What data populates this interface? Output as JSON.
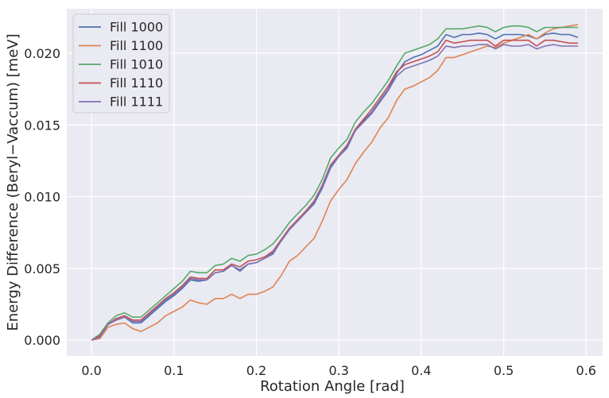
{
  "chart_data": {
    "type": "line",
    "xlabel": "Rotation Angle [rad]",
    "ylabel": "Energy Difference (Beryl−Vaccum) [meV]",
    "xlim": [
      -0.03,
      0.62
    ],
    "ylim": [
      -0.0011,
      0.0231
    ],
    "xticks": [
      0.0,
      0.1,
      0.2,
      0.3,
      0.4,
      0.5,
      0.6
    ],
    "xtick_labels": [
      "0.0",
      "0.1",
      "0.2",
      "0.3",
      "0.4",
      "0.5",
      "0.6"
    ],
    "yticks": [
      0.0,
      0.005,
      0.01,
      0.015,
      0.02
    ],
    "ytick_labels": [
      "0.000",
      "0.005",
      "0.010",
      "0.015",
      "0.020"
    ],
    "grid": true,
    "legend_position": "top-left",
    "x": [
      0.0,
      0.01,
      0.02,
      0.03,
      0.04,
      0.05,
      0.06,
      0.07,
      0.08,
      0.09,
      0.1,
      0.11,
      0.12,
      0.13,
      0.14,
      0.15,
      0.16,
      0.17,
      0.18,
      0.19,
      0.2,
      0.21,
      0.22,
      0.23,
      0.24,
      0.25,
      0.26,
      0.27,
      0.28,
      0.29,
      0.3,
      0.31,
      0.32,
      0.33,
      0.34,
      0.35,
      0.36,
      0.37,
      0.38,
      0.39,
      0.4,
      0.41,
      0.42,
      0.43,
      0.44,
      0.45,
      0.46,
      0.47,
      0.48,
      0.49,
      0.5,
      0.51,
      0.52,
      0.53,
      0.54,
      0.55,
      0.56,
      0.57,
      0.58,
      0.59
    ],
    "series": [
      {
        "name": "Fill 1000",
        "color": "#4c72b0",
        "values": [
          0.0,
          0.0003,
          0.0011,
          0.0014,
          0.0016,
          0.0012,
          0.0012,
          0.0017,
          0.0022,
          0.0027,
          0.0031,
          0.0036,
          0.0042,
          0.0041,
          0.0042,
          0.0047,
          0.0048,
          0.0052,
          0.0049,
          0.0053,
          0.0054,
          0.0057,
          0.006,
          0.0069,
          0.0077,
          0.0083,
          0.0089,
          0.0095,
          0.0106,
          0.012,
          0.0128,
          0.0134,
          0.0146,
          0.0153,
          0.0159,
          0.0167,
          0.0175,
          0.0186,
          0.0194,
          0.0197,
          0.0199,
          0.0202,
          0.0205,
          0.0213,
          0.0211,
          0.0213,
          0.0213,
          0.0214,
          0.0213,
          0.021,
          0.0213,
          0.0213,
          0.0213,
          0.0212,
          0.021,
          0.0213,
          0.0214,
          0.0213,
          0.0213,
          0.0211
        ]
      },
      {
        "name": "Fill 1100",
        "color": "#dd8452",
        "values": [
          0.0,
          0.0001,
          0.0009,
          0.0011,
          0.0012,
          0.0008,
          0.0006,
          0.0009,
          0.0012,
          0.0017,
          0.002,
          0.0023,
          0.0028,
          0.0026,
          0.0025,
          0.0029,
          0.0029,
          0.0032,
          0.0029,
          0.0032,
          0.0032,
          0.0034,
          0.0037,
          0.0045,
          0.0055,
          0.0059,
          0.0065,
          0.0071,
          0.0083,
          0.0097,
          0.0105,
          0.0112,
          0.0123,
          0.0131,
          0.0138,
          0.0148,
          0.0155,
          0.0167,
          0.0175,
          0.0177,
          0.018,
          0.0183,
          0.0188,
          0.0197,
          0.0197,
          0.0199,
          0.0201,
          0.0203,
          0.0205,
          0.0204,
          0.0207,
          0.0209,
          0.0211,
          0.0213,
          0.021,
          0.0214,
          0.0217,
          0.0218,
          0.0219,
          0.022
        ]
      },
      {
        "name": "Fill 1010",
        "color": "#55a868",
        "values": [
          0.0,
          0.0004,
          0.0012,
          0.0017,
          0.0019,
          0.0016,
          0.0016,
          0.0021,
          0.0026,
          0.0031,
          0.0036,
          0.0041,
          0.0048,
          0.0047,
          0.0047,
          0.0052,
          0.0053,
          0.0057,
          0.0055,
          0.0059,
          0.006,
          0.0063,
          0.0067,
          0.0074,
          0.0082,
          0.0088,
          0.0094,
          0.0101,
          0.0112,
          0.0127,
          0.0134,
          0.014,
          0.0152,
          0.0159,
          0.0165,
          0.0173,
          0.0181,
          0.0191,
          0.02,
          0.0202,
          0.0204,
          0.0206,
          0.021,
          0.0217,
          0.0217,
          0.0217,
          0.0218,
          0.0219,
          0.0218,
          0.0215,
          0.0218,
          0.0219,
          0.0219,
          0.0218,
          0.0215,
          0.0218,
          0.0218,
          0.0218,
          0.0218,
          0.0218
        ]
      },
      {
        "name": "Fill 1110",
        "color": "#c44e52",
        "values": [
          0.0,
          0.0003,
          0.0011,
          0.0015,
          0.0017,
          0.0014,
          0.0014,
          0.0019,
          0.0024,
          0.0029,
          0.0033,
          0.0038,
          0.0044,
          0.0043,
          0.0043,
          0.0049,
          0.0049,
          0.0053,
          0.0051,
          0.0055,
          0.0056,
          0.0058,
          0.0062,
          0.007,
          0.0078,
          0.0084,
          0.009,
          0.0097,
          0.0108,
          0.0122,
          0.0129,
          0.0136,
          0.0147,
          0.0154,
          0.0161,
          0.0169,
          0.0177,
          0.0187,
          0.0192,
          0.0194,
          0.0196,
          0.0198,
          0.0201,
          0.0209,
          0.0207,
          0.0208,
          0.0209,
          0.0209,
          0.0209,
          0.0205,
          0.0209,
          0.0209,
          0.0209,
          0.0209,
          0.0205,
          0.0209,
          0.0209,
          0.0208,
          0.0207,
          0.0207
        ]
      },
      {
        "name": "Fill 1111",
        "color": "#8172b3",
        "values": [
          0.0,
          0.0002,
          0.0011,
          0.0014,
          0.0016,
          0.0013,
          0.0013,
          0.0018,
          0.0023,
          0.0028,
          0.0032,
          0.0037,
          0.0043,
          0.0042,
          0.0042,
          0.0047,
          0.0048,
          0.0052,
          0.0048,
          0.0053,
          0.0054,
          0.0057,
          0.0061,
          0.0069,
          0.0077,
          0.0083,
          0.0089,
          0.0096,
          0.0107,
          0.0121,
          0.0128,
          0.0135,
          0.0146,
          0.0152,
          0.0158,
          0.0166,
          0.0174,
          0.0184,
          0.0189,
          0.0191,
          0.0193,
          0.0195,
          0.0198,
          0.0205,
          0.0204,
          0.0205,
          0.0205,
          0.0206,
          0.0206,
          0.0203,
          0.0206,
          0.0205,
          0.0205,
          0.0206,
          0.0203,
          0.0205,
          0.0206,
          0.0205,
          0.0205,
          0.0205
        ]
      }
    ]
  }
}
